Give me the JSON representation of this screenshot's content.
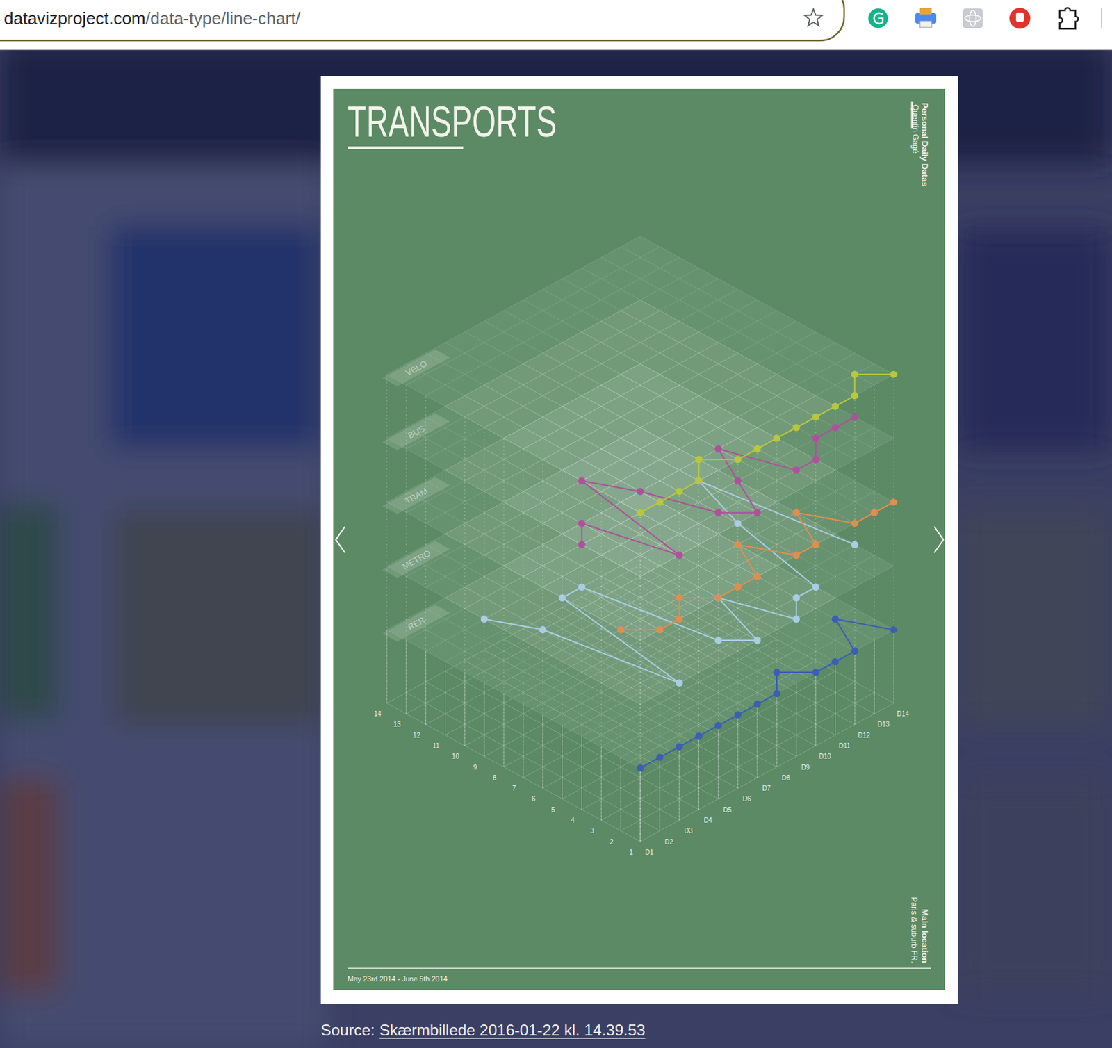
{
  "browser": {
    "host": "datavizproject.com",
    "path": "/data-type/line-chart/"
  },
  "chart_data": {
    "type": "line",
    "title": "TRANSPORTS",
    "annotations": [
      "Personal Daily Datas",
      "Quentin Gagé",
      "Main location",
      "Paris & suburb FR.",
      "May 23rd 2014 - June 5th 2014"
    ],
    "categories": [
      "D1",
      "D2",
      "D3",
      "D4",
      "D5",
      "D6",
      "D7",
      "D8",
      "D9",
      "D10",
      "D11",
      "D12",
      "D13",
      "D14"
    ],
    "series": [
      {
        "name": "RER",
        "color": "#3a5fb5",
        "values": [
          1,
          1,
          1,
          1,
          1,
          1,
          1,
          1,
          2,
          1,
          1,
          1,
          3,
          1
        ]
      },
      {
        "name": "METRO",
        "color": "#a9cde3",
        "values": [
          9,
          7,
          1,
          8,
          8,
          2,
          1,
          4,
          1,
          2,
          2,
          7,
          10,
          3
        ]
      },
      {
        "name": "TRAM",
        "color": "#e08e4f",
        "values": [
          2,
          1,
          1,
          2,
          1,
          1,
          1,
          3,
          1,
          1,
          3,
          1,
          1,
          1
        ]
      },
      {
        "name": "BUS",
        "color": "#b0509c",
        "values": [
          4,
          5,
          1,
          7,
          5,
          2,
          1,
          3,
          5,
          2,
          2,
          3,
          3,
          3
        ]
      },
      {
        "name": "VELO",
        "color": "#b8c73c",
        "values": [
          1,
          1,
          1,
          1,
          2,
          1,
          1,
          1,
          1,
          1,
          1,
          1,
          2,
          1
        ]
      }
    ],
    "ylim": [
      1,
      14
    ],
    "yticks": [
      1,
      2,
      3,
      4,
      5,
      6,
      7,
      8,
      9,
      10,
      11,
      12,
      13,
      14
    ],
    "grid": true,
    "marker": "circle",
    "line_style": "solid"
  },
  "caption": {
    "label": "Source:",
    "link": "Skærmbillede 2016-01-22 kl. 14.39.53"
  }
}
